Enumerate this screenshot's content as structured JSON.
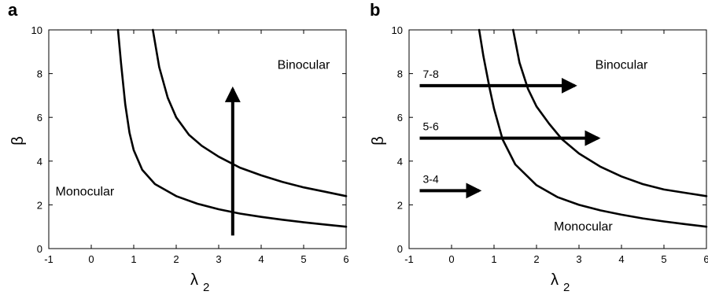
{
  "chart_data": [
    {
      "type": "line",
      "panel_label": "a",
      "xlabel": "λ",
      "xlabel_sub": "2",
      "ylabel": "β",
      "xlim": [
        -1,
        6
      ],
      "ylim": [
        0,
        10
      ],
      "xticks": [
        -1,
        0,
        1,
        2,
        3,
        4,
        5,
        6
      ],
      "yticks": [
        0,
        2,
        4,
        6,
        8,
        10
      ],
      "grid": false,
      "series": [
        {
          "x": [
            0.63,
            0.7,
            0.8,
            0.9,
            1.0,
            1.2,
            1.5,
            2.0,
            2.5,
            3.0,
            3.5,
            4.0,
            4.5,
            5.0,
            5.5,
            6.0
          ],
          "y": [
            10.0,
            8.5,
            6.6,
            5.3,
            4.5,
            3.6,
            2.95,
            2.4,
            2.05,
            1.8,
            1.6,
            1.45,
            1.32,
            1.2,
            1.1,
            1.0
          ]
        },
        {
          "x": [
            1.45,
            1.6,
            1.8,
            2.0,
            2.3,
            2.6,
            3.0,
            3.5,
            4.0,
            4.5,
            5.0,
            5.5,
            6.0
          ],
          "y": [
            10.0,
            8.3,
            6.9,
            6.0,
            5.2,
            4.7,
            4.2,
            3.7,
            3.35,
            3.05,
            2.8,
            2.6,
            2.4
          ]
        }
      ],
      "region_labels": [
        {
          "text": "Binocular",
          "x": 5.0,
          "y": 8.4
        },
        {
          "text": "Monocular",
          "x": -0.15,
          "y": 2.6
        }
      ],
      "arrows": [
        {
          "x1": 3.33,
          "y1": 0.6,
          "x2": 3.33,
          "y2": 7.3
        }
      ]
    },
    {
      "type": "line",
      "panel_label": "b",
      "xlabel": "λ",
      "xlabel_sub": "2",
      "ylabel": "β",
      "xlim": [
        -1,
        6
      ],
      "ylim": [
        0,
        10
      ],
      "xticks": [
        -1,
        0,
        1,
        2,
        3,
        4,
        5,
        6
      ],
      "yticks": [
        0,
        2,
        4,
        6,
        8,
        10
      ],
      "grid": false,
      "series": [
        {
          "x": [
            0.65,
            0.75,
            0.9,
            1.0,
            1.2,
            1.5,
            2.0,
            2.5,
            3.0,
            3.5,
            4.0,
            4.5,
            5.0,
            5.5,
            6.0
          ],
          "y": [
            10.0,
            8.8,
            7.3,
            6.4,
            5.0,
            3.85,
            2.9,
            2.35,
            2.0,
            1.75,
            1.55,
            1.38,
            1.24,
            1.12,
            1.0
          ]
        },
        {
          "x": [
            1.45,
            1.6,
            1.8,
            2.0,
            2.3,
            2.6,
            3.0,
            3.5,
            4.0,
            4.5,
            5.0,
            5.5,
            6.0
          ],
          "y": [
            10.0,
            8.5,
            7.3,
            6.5,
            5.7,
            5.0,
            4.35,
            3.75,
            3.3,
            2.95,
            2.7,
            2.55,
            2.4
          ]
        }
      ],
      "region_labels": [
        {
          "text": "Binocular",
          "x": 4.0,
          "y": 8.4
        },
        {
          "text": "Monocular",
          "x": 3.1,
          "y": 1.0
        }
      ],
      "arrows": [
        {
          "x1": -0.75,
          "y1": 7.45,
          "x2": 2.9,
          "y2": 7.45,
          "label": "7-8"
        },
        {
          "x1": -0.75,
          "y1": 5.05,
          "x2": 3.45,
          "y2": 5.05,
          "label": "5-6"
        },
        {
          "x1": -0.75,
          "y1": 2.65,
          "x2": 0.65,
          "y2": 2.65,
          "label": "3-4"
        }
      ]
    }
  ]
}
